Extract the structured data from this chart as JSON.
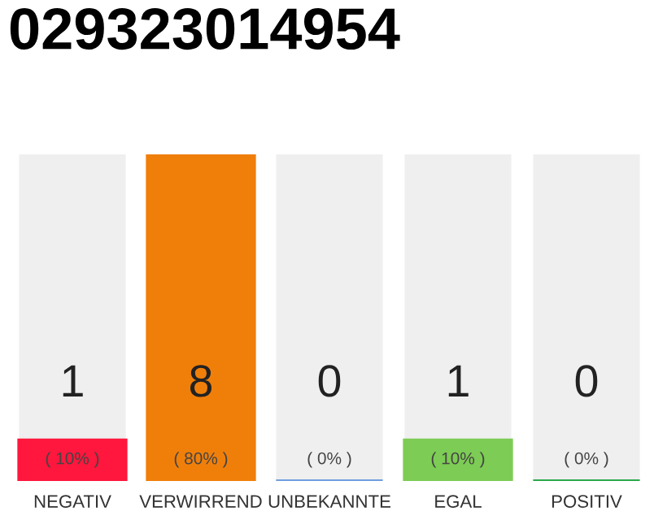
{
  "chart_data": {
    "type": "bar",
    "title": "029323014954",
    "categories": [
      "NEGATIV",
      "VERWIRREND",
      "UNBEKANNTE",
      "EGAL",
      "POSITIV"
    ],
    "values": [
      1,
      8,
      0,
      1,
      0
    ],
    "colors": [
      "#ff173d",
      "#f07f0a",
      "#6f9de0",
      "#7dcc55",
      "#2aa84a"
    ],
    "data_labels": true,
    "annotations": [
      "( 10% )",
      "( 80% )",
      "( 0% )",
      "( 10% )",
      "( 0% )"
    ],
    "grid": false,
    "legend": false
  }
}
